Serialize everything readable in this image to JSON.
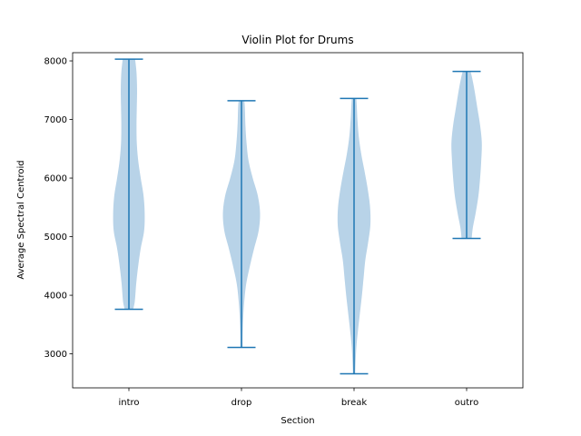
{
  "chart_data": {
    "type": "violin",
    "title": "Violin Plot for Drums",
    "xlabel": "Section",
    "ylabel": "Average Spectral Centroid",
    "categories": [
      "intro",
      "drop",
      "break",
      "outro"
    ],
    "ylim": [
      2420,
      8140
    ],
    "yticks": [
      3000,
      4000,
      5000,
      6000,
      7000,
      8000
    ],
    "grid": false,
    "violin_color": "#b8d3e8",
    "line_color": "#1f77b4",
    "violins": [
      {
        "category": "intro",
        "min": 3760,
        "max": 8030,
        "profile": [
          [
            3760,
            0.15
          ],
          [
            3900,
            0.21
          ],
          [
            4200,
            0.26
          ],
          [
            4500,
            0.33
          ],
          [
            4800,
            0.42
          ],
          [
            5100,
            0.54
          ],
          [
            5400,
            0.56
          ],
          [
            5700,
            0.52
          ],
          [
            6000,
            0.42
          ],
          [
            6300,
            0.33
          ],
          [
            6600,
            0.28
          ],
          [
            6900,
            0.27
          ],
          [
            7200,
            0.28
          ],
          [
            7500,
            0.29
          ],
          [
            7800,
            0.27
          ],
          [
            8030,
            0.22
          ]
        ]
      },
      {
        "category": "drop",
        "min": 3110,
        "max": 7320,
        "profile": [
          [
            3110,
            0.04
          ],
          [
            3300,
            0.04
          ],
          [
            3600,
            0.06
          ],
          [
            3900,
            0.1
          ],
          [
            4200,
            0.17
          ],
          [
            4500,
            0.3
          ],
          [
            4800,
            0.45
          ],
          [
            5100,
            0.61
          ],
          [
            5400,
            0.66
          ],
          [
            5700,
            0.58
          ],
          [
            6000,
            0.4
          ],
          [
            6300,
            0.25
          ],
          [
            6600,
            0.18
          ],
          [
            6900,
            0.14
          ],
          [
            7200,
            0.12
          ],
          [
            7320,
            0.1
          ]
        ]
      },
      {
        "category": "break",
        "min": 2660,
        "max": 7360,
        "profile": [
          [
            2660,
            0.04
          ],
          [
            2800,
            0.05
          ],
          [
            3100,
            0.08
          ],
          [
            3400,
            0.14
          ],
          [
            3700,
            0.21
          ],
          [
            4000,
            0.28
          ],
          [
            4300,
            0.34
          ],
          [
            4600,
            0.4
          ],
          [
            4900,
            0.5
          ],
          [
            5200,
            0.58
          ],
          [
            5500,
            0.57
          ],
          [
            5800,
            0.49
          ],
          [
            6100,
            0.38
          ],
          [
            6400,
            0.26
          ],
          [
            6700,
            0.17
          ],
          [
            7000,
            0.12
          ],
          [
            7200,
            0.1
          ],
          [
            7360,
            0.08
          ]
        ]
      },
      {
        "category": "outro",
        "min": 4970,
        "max": 7820,
        "profile": [
          [
            4970,
            0.18
          ],
          [
            5150,
            0.22
          ],
          [
            5400,
            0.32
          ],
          [
            5700,
            0.42
          ],
          [
            6000,
            0.48
          ],
          [
            6300,
            0.52
          ],
          [
            6600,
            0.54
          ],
          [
            6900,
            0.48
          ],
          [
            7200,
            0.38
          ],
          [
            7500,
            0.28
          ],
          [
            7700,
            0.2
          ],
          [
            7820,
            0.14
          ]
        ]
      }
    ]
  }
}
